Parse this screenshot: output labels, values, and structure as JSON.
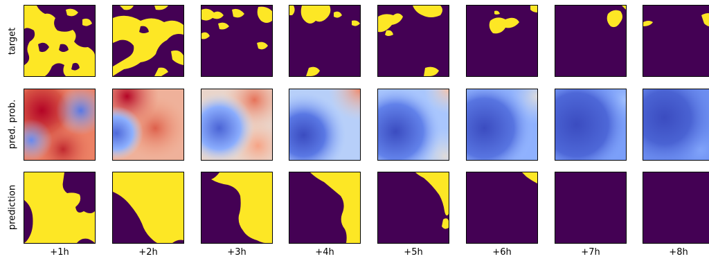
{
  "rows": [
    {
      "label": "target",
      "kind": "binary"
    },
    {
      "label": "pred. prob.",
      "kind": "probability"
    },
    {
      "label": "prediction",
      "kind": "binary"
    }
  ],
  "columns": [
    "+1h",
    "+2h",
    "+3h",
    "+4h",
    "+5h",
    "+6h",
    "+7h",
    "+8h"
  ],
  "colors": {
    "binary_off": "#440154",
    "binary_on": "#fde725",
    "prob_low": "#3b4cc0",
    "prob_mid": "#dddcdc",
    "prob_high": "#b40426"
  },
  "approx_fraction_positive": {
    "target": [
      0.45,
      0.35,
      0.18,
      0.12,
      0.12,
      0.08,
      0.04,
      0.03
    ],
    "prediction": [
      0.78,
      0.7,
      0.55,
      0.28,
      0.12,
      0.03,
      0.0,
      0.0
    ]
  }
}
